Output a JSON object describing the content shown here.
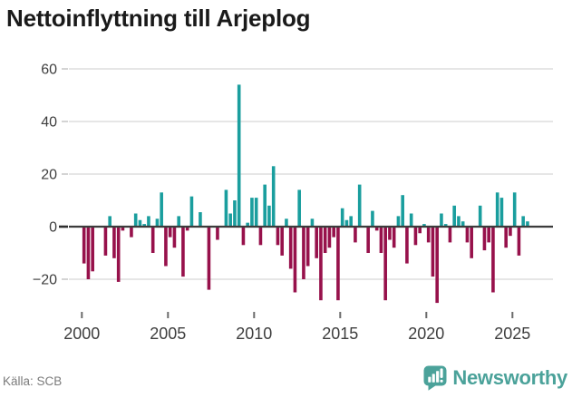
{
  "title": "Nettoinflyttning till Arjeplog",
  "source": "Källa: SCB",
  "branding": {
    "name": "Newsworthy"
  },
  "colors": {
    "positive": "#1A9E9E",
    "negative": "#97114B",
    "grid": "#E3E3E3",
    "zero_line": "#3C3C3C",
    "tick": "#C9C9C9",
    "zero_tick": "#2F2F2F",
    "x_tick": "#6B6B6B",
    "axis_text": "#3E3E3E",
    "title_text": "#1A1A1A",
    "source_text": "#7B7B7B",
    "brand_teal": "#4BA29A"
  },
  "chart_data": {
    "type": "bar",
    "title": "Nettoinflyttning till Arjeplog",
    "frequency": "quarterly",
    "y_ticks": [
      60,
      40,
      20,
      0,
      -20
    ],
    "ylim": [
      -30,
      62
    ],
    "x_tick_years": [
      2000,
      2005,
      2010,
      2015,
      2020,
      2025
    ],
    "legend": "none",
    "grid": "horizontal",
    "series": [
      {
        "year": 2000,
        "values": [
          -14,
          -20,
          -17,
          0
        ]
      },
      {
        "year": 2001,
        "values": [
          0,
          -11,
          4,
          -12
        ]
      },
      {
        "year": 2002,
        "values": [
          -21,
          -1.5,
          0,
          -4
        ]
      },
      {
        "year": 2003,
        "values": [
          5,
          2.5,
          1,
          4
        ]
      },
      {
        "year": 2004,
        "values": [
          -10,
          3,
          13,
          -15
        ]
      },
      {
        "year": 2005,
        "values": [
          -4,
          -8,
          4,
          -19
        ]
      },
      {
        "year": 2006,
        "values": [
          -1.5,
          11.5,
          0,
          5.5
        ]
      },
      {
        "year": 2007,
        "values": [
          0,
          -24,
          0,
          -5
        ]
      },
      {
        "year": 2008,
        "values": [
          0,
          14,
          5,
          10
        ]
      },
      {
        "year": 2009,
        "values": [
          54,
          -7,
          1.5,
          11
        ]
      },
      {
        "year": 2010,
        "values": [
          11,
          -7,
          16,
          8
        ]
      },
      {
        "year": 2011,
        "values": [
          23,
          -7,
          -11,
          3
        ]
      },
      {
        "year": 2012,
        "values": [
          -16,
          -25,
          14,
          -20
        ]
      },
      {
        "year": 2013,
        "values": [
          -15,
          3,
          -12,
          -28
        ]
      },
      {
        "year": 2014,
        "values": [
          -10,
          -8,
          -4,
          -28
        ]
      },
      {
        "year": 2015,
        "values": [
          7,
          2.5,
          4,
          -6
        ]
      },
      {
        "year": 2016,
        "values": [
          16,
          0,
          -10,
          6
        ]
      },
      {
        "year": 2017,
        "values": [
          -1.5,
          -10,
          -28,
          -5
        ]
      },
      {
        "year": 2018,
        "values": [
          -8,
          4,
          12,
          -14
        ]
      },
      {
        "year": 2019,
        "values": [
          5,
          -7,
          -2.5,
          1
        ]
      },
      {
        "year": 2020,
        "values": [
          -6,
          -19,
          -29,
          5
        ]
      },
      {
        "year": 2021,
        "values": [
          1,
          -6,
          8,
          4
        ]
      },
      {
        "year": 2022,
        "values": [
          2,
          -6,
          -12,
          0
        ]
      },
      {
        "year": 2023,
        "values": [
          8,
          -9,
          -6,
          -25
        ]
      },
      {
        "year": 2024,
        "values": [
          13,
          11,
          -8,
          -3.5
        ]
      },
      {
        "year": 2025,
        "values": [
          13,
          -11,
          4,
          2
        ]
      }
    ]
  }
}
